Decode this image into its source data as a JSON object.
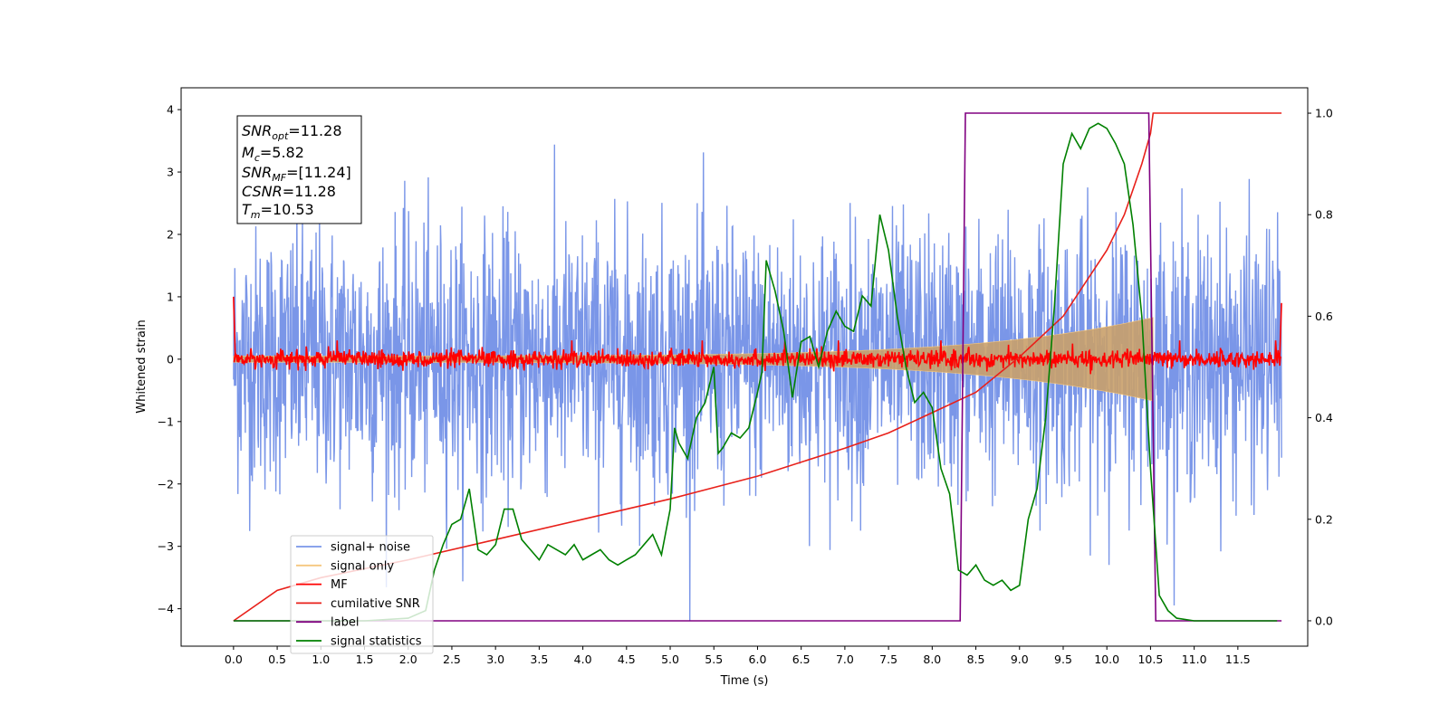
{
  "chart_data": {
    "type": "line",
    "xlabel": "Time (s)",
    "ylabel": "Whitened strain",
    "xlim": [
      -0.6,
      12.3
    ],
    "ylim": [
      -4.6,
      4.35
    ],
    "ylim_right": [
      -0.05,
      1.05
    ],
    "x_ticks": [
      "0.0",
      "0.5",
      "1.0",
      "1.5",
      "2.0",
      "2.5",
      "3.0",
      "3.5",
      "4.0",
      "4.5",
      "5.0",
      "5.5",
      "6.0",
      "6.5",
      "7.0",
      "7.5",
      "8.0",
      "8.5",
      "9.0",
      "9.5",
      "10.0",
      "10.5",
      "11.0",
      "11.5"
    ],
    "y_ticks": [
      "4",
      "3",
      "2",
      "1",
      "0",
      "−1",
      "−2",
      "−3",
      "−4"
    ],
    "y_ticks_right": [
      "1.0",
      "0.8",
      "0.6",
      "0.4",
      "0.2",
      "0.0"
    ],
    "grid": false,
    "legend_position": "lower-left",
    "annotation": {
      "snr_opt": {
        "sym": "SNR",
        "sub": "opt",
        "val": "=11.28"
      },
      "mc": {
        "sym": "M",
        "sub": "c",
        "val": "=5.82"
      },
      "snr_mf": {
        "sym": "SNR",
        "sub": "MF",
        "val": "=[11.24]"
      },
      "csnr": {
        "sym": "CSNR",
        "sub": "",
        "val": "=11.28"
      },
      "tm": {
        "sym": "T",
        "sub": "m",
        "val": "=10.53"
      }
    },
    "series": [
      {
        "name": "signal+ noise",
        "color": "#7a96e8",
        "axis": "left",
        "style": "noise band, amplitude ~±2.5, peaks ~±4",
        "range": [
          0.0,
          12.0
        ]
      },
      {
        "name": "signal only",
        "color": "#f5c77e",
        "axis": "left",
        "style": "chirp growing from ±0.05 to ±0.55 at t=10.53"
      },
      {
        "name": "MF",
        "color": "#ff0000",
        "axis": "left",
        "style": "noise around 0, amplitude ~±0.2, edge spikes to 1.0"
      },
      {
        "name": "cumilative SNR",
        "color": "#e8201a",
        "axis": "right",
        "x": [
          0.0,
          0.5,
          1.0,
          2.0,
          3.0,
          4.0,
          5.0,
          6.0,
          7.0,
          7.5,
          8.0,
          8.5,
          9.0,
          9.5,
          10.0,
          10.2,
          10.4,
          10.5,
          10.53,
          12.0
        ],
        "y": [
          0.0,
          0.06,
          0.085,
          0.12,
          0.16,
          0.2,
          0.24,
          0.285,
          0.34,
          0.37,
          0.41,
          0.45,
          0.52,
          0.6,
          0.73,
          0.8,
          0.9,
          0.96,
          1.0,
          1.0
        ]
      },
      {
        "name": "label",
        "color": "#800080",
        "axis": "right",
        "x": [
          0.0,
          8.32,
          8.38,
          10.48,
          10.56,
          12.0
        ],
        "y": [
          0.0,
          0.0,
          1.0,
          1.0,
          0.0,
          0.0
        ]
      },
      {
        "name": "signal statistics",
        "color": "#008000",
        "axis": "right",
        "x": [
          0.0,
          0.5,
          1.0,
          1.5,
          2.0,
          2.2,
          2.3,
          2.4,
          2.5,
          2.6,
          2.7,
          2.8,
          2.9,
          3.0,
          3.1,
          3.2,
          3.3,
          3.4,
          3.5,
          3.6,
          3.7,
          3.8,
          3.9,
          4.0,
          4.1,
          4.2,
          4.3,
          4.4,
          4.5,
          4.6,
          4.7,
          4.8,
          4.9,
          5.0,
          5.05,
          5.1,
          5.2,
          5.3,
          5.4,
          5.5,
          5.55,
          5.6,
          5.7,
          5.8,
          5.9,
          6.0,
          6.05,
          6.1,
          6.2,
          6.3,
          6.4,
          6.5,
          6.6,
          6.7,
          6.8,
          6.9,
          7.0,
          7.1,
          7.2,
          7.3,
          7.4,
          7.5,
          7.6,
          7.7,
          7.8,
          7.9,
          8.0,
          8.1,
          8.2,
          8.3,
          8.4,
          8.5,
          8.6,
          8.7,
          8.8,
          8.9,
          9.0,
          9.1,
          9.2,
          9.3,
          9.4,
          9.5,
          9.6,
          9.7,
          9.8,
          9.9,
          10.0,
          10.1,
          10.2,
          10.3,
          10.4,
          10.5,
          10.6,
          10.7,
          10.8,
          11.0,
          11.5,
          11.95
        ],
        "y": [
          0.0,
          0.0,
          0.0,
          0.0,
          0.005,
          0.02,
          0.1,
          0.15,
          0.19,
          0.2,
          0.26,
          0.14,
          0.13,
          0.15,
          0.22,
          0.22,
          0.16,
          0.14,
          0.12,
          0.15,
          0.14,
          0.13,
          0.15,
          0.12,
          0.13,
          0.14,
          0.12,
          0.11,
          0.12,
          0.13,
          0.15,
          0.17,
          0.13,
          0.22,
          0.38,
          0.35,
          0.32,
          0.4,
          0.43,
          0.5,
          0.33,
          0.34,
          0.37,
          0.36,
          0.38,
          0.45,
          0.49,
          0.71,
          0.65,
          0.57,
          0.44,
          0.55,
          0.56,
          0.5,
          0.57,
          0.61,
          0.58,
          0.57,
          0.64,
          0.62,
          0.8,
          0.73,
          0.6,
          0.5,
          0.43,
          0.45,
          0.42,
          0.3,
          0.25,
          0.1,
          0.09,
          0.11,
          0.08,
          0.07,
          0.08,
          0.06,
          0.07,
          0.2,
          0.26,
          0.4,
          0.62,
          0.9,
          0.96,
          0.93,
          0.97,
          0.98,
          0.97,
          0.94,
          0.9,
          0.78,
          0.6,
          0.3,
          0.05,
          0.02,
          0.005,
          0.0,
          0.0,
          0.0
        ]
      }
    ]
  }
}
